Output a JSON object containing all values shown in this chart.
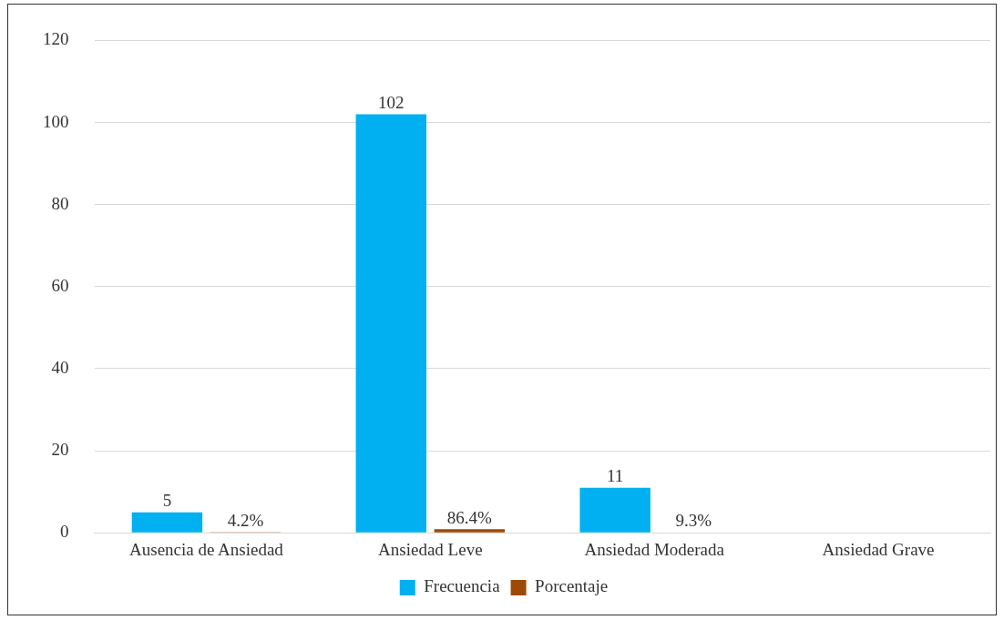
{
  "chart_data": {
    "type": "bar",
    "categories": [
      "Ausencia de Ansiedad",
      "Ansiedad Leve",
      "Ansiedad Moderada",
      "Ansiedad Grave"
    ],
    "series": [
      {
        "name": "Frecuencia",
        "color": "#00b0f0",
        "values": [
          5,
          102,
          11,
          null
        ],
        "value_labels": [
          "5",
          "102",
          "11",
          null
        ]
      },
      {
        "name": "Porcentaje",
        "color": "#9e4a06",
        "values": [
          0.042,
          0.864,
          0.093,
          null
        ],
        "value_labels": [
          "4.2%",
          "86.4%",
          "9.3%",
          null
        ]
      }
    ],
    "ylim": [
      0,
      120
    ],
    "yticks": [
      0,
      20,
      40,
      60,
      80,
      100,
      120
    ],
    "grid": "y",
    "legend": "bottom"
  }
}
